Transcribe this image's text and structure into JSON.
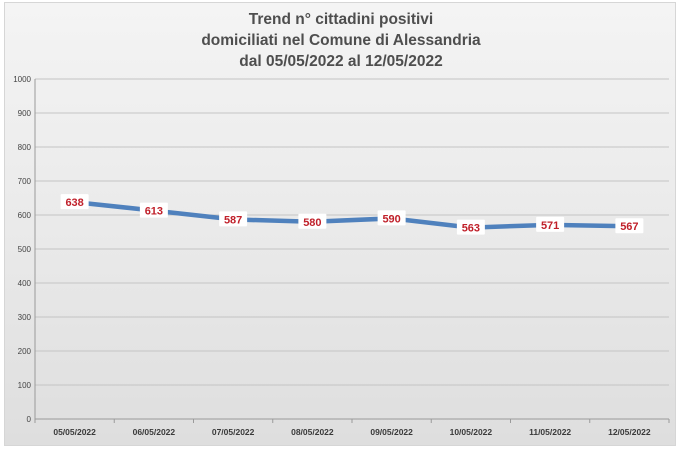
{
  "chart_data": {
    "type": "line",
    "title_lines": [
      "Trend n° cittadini positivi",
      "domiciliati nel Comune di Alessandria",
      "dal 05/05/2022 al 12/05/2022"
    ],
    "categories": [
      "05/05/2022",
      "06/05/2022",
      "07/05/2022",
      "08/05/2022",
      "09/05/2022",
      "10/05/2022",
      "11/05/2022",
      "12/05/2022"
    ],
    "series": [
      {
        "values": [
          638,
          613,
          587,
          580,
          590,
          563,
          571,
          567
        ],
        "color": "#4f81bd",
        "label_color": "#c0202a"
      }
    ],
    "ylim": [
      0,
      1000
    ],
    "yticks": [
      "0",
      "100",
      "200",
      "300",
      "400",
      "500",
      "600",
      "700",
      "800",
      "900",
      "1000"
    ],
    "xlabel": "",
    "ylabel": "",
    "grid": true,
    "legend": "none"
  }
}
